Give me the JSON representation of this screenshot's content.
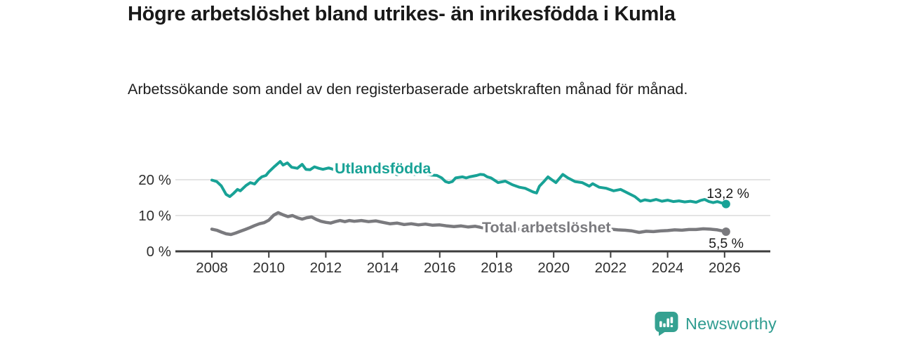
{
  "header": {
    "title": "Högre arbetslöshet bland utrikes- än inrikesfödda i Kumla",
    "subtitle": "Arbetssökande som andel av den registerbaserade arbetskraften månad för månad."
  },
  "footer": {
    "brand": "Newsworthy",
    "brand_color": "#2f9c90",
    "logo_icon": "newsworthy-bubble-chart-icon"
  },
  "chart_data": {
    "type": "line",
    "title": "Högre arbetslöshet bland utrikes- än inrikesfödda i Kumla",
    "subtitle": "Arbetssökande som andel av den registerbaserade arbetskraften månad för månad.",
    "xlabel": "",
    "ylabel": "",
    "unit": "%",
    "grid": "horizontal",
    "legend_position": "inline-labels",
    "xlim": [
      2006.7,
      2027.6
    ],
    "ylim": [
      0,
      27
    ],
    "x_ticks": [
      2008,
      2010,
      2012,
      2014,
      2016,
      2018,
      2020,
      2022,
      2024,
      2026
    ],
    "x_tick_labels": [
      "2008",
      "2010",
      "2012",
      "2014",
      "2016",
      "2018",
      "2020",
      "2022",
      "2024",
      "2026"
    ],
    "y_ticks": [
      0,
      10,
      20
    ],
    "y_tick_labels": [
      "0 %",
      "10 %",
      "20 %"
    ],
    "colors": {
      "utlandsfodda": "#18A296",
      "total": "#7A7A7E",
      "gridline": "#DCDCDC",
      "axis": "#3D3D3D",
      "annotation_text": "#191919"
    },
    "series": [
      {
        "name": "Utlandsfödda",
        "color": "#18A296",
        "end_value": 13.2,
        "end_label": "13,2 %",
        "points": [
          [
            2008.0,
            19.9
          ],
          [
            2008.17,
            19.5
          ],
          [
            2008.33,
            18.3
          ],
          [
            2008.5,
            15.9
          ],
          [
            2008.63,
            15.3
          ],
          [
            2008.75,
            16.1
          ],
          [
            2008.9,
            17.3
          ],
          [
            2009.0,
            16.9
          ],
          [
            2009.2,
            18.4
          ],
          [
            2009.35,
            19.2
          ],
          [
            2009.5,
            18.8
          ],
          [
            2009.63,
            20.0
          ],
          [
            2009.75,
            20.8
          ],
          [
            2009.9,
            21.2
          ],
          [
            2010.0,
            22.2
          ],
          [
            2010.2,
            23.7
          ],
          [
            2010.4,
            25.1
          ],
          [
            2010.5,
            24.1
          ],
          [
            2010.65,
            24.7
          ],
          [
            2010.8,
            23.5
          ],
          [
            2011.0,
            23.2
          ],
          [
            2011.17,
            24.3
          ],
          [
            2011.3,
            22.9
          ],
          [
            2011.45,
            22.8
          ],
          [
            2011.6,
            23.6
          ],
          [
            2011.75,
            23.2
          ],
          [
            2011.9,
            22.9
          ],
          [
            2012.1,
            23.3
          ],
          [
            2012.3,
            22.8
          ],
          [
            2012.5,
            22.6
          ],
          [
            2012.7,
            22.9
          ],
          [
            2012.9,
            22.4
          ],
          [
            2013.1,
            22.7
          ],
          [
            2013.3,
            22.3
          ],
          [
            2013.5,
            22.5
          ],
          [
            2013.7,
            22.1
          ],
          [
            2013.9,
            22.3
          ],
          [
            2014.1,
            21.7
          ],
          [
            2014.3,
            22.2
          ],
          [
            2014.5,
            21.4
          ],
          [
            2014.7,
            21.9
          ],
          [
            2014.9,
            22.1
          ],
          [
            2015.1,
            21.5
          ],
          [
            2015.3,
            21.6
          ],
          [
            2015.5,
            21.7
          ],
          [
            2015.7,
            21.3
          ],
          [
            2015.9,
            21.2
          ],
          [
            2016.07,
            20.5
          ],
          [
            2016.2,
            19.5
          ],
          [
            2016.32,
            19.2
          ],
          [
            2016.44,
            19.5
          ],
          [
            2016.56,
            20.5
          ],
          [
            2016.8,
            20.8
          ],
          [
            2016.93,
            20.5
          ],
          [
            2017.05,
            20.8
          ],
          [
            2017.3,
            21.2
          ],
          [
            2017.42,
            21.5
          ],
          [
            2017.55,
            21.4
          ],
          [
            2017.67,
            20.8
          ],
          [
            2017.8,
            20.5
          ],
          [
            2018.05,
            19.2
          ],
          [
            2018.3,
            19.6
          ],
          [
            2018.55,
            18.6
          ],
          [
            2018.8,
            17.9
          ],
          [
            2019.0,
            17.6
          ],
          [
            2019.27,
            16.6
          ],
          [
            2019.4,
            16.3
          ],
          [
            2019.5,
            18.2
          ],
          [
            2019.67,
            19.6
          ],
          [
            2019.8,
            20.8
          ],
          [
            2019.9,
            20.2
          ],
          [
            2020.08,
            19.2
          ],
          [
            2020.32,
            21.5
          ],
          [
            2020.5,
            20.5
          ],
          [
            2020.75,
            19.5
          ],
          [
            2021.0,
            19.2
          ],
          [
            2021.25,
            18.2
          ],
          [
            2021.37,
            18.9
          ],
          [
            2021.6,
            17.9
          ],
          [
            2021.85,
            17.6
          ],
          [
            2022.1,
            16.9
          ],
          [
            2022.35,
            17.3
          ],
          [
            2022.6,
            16.3
          ],
          [
            2022.85,
            15.3
          ],
          [
            2023.05,
            14.0
          ],
          [
            2023.2,
            14.4
          ],
          [
            2023.4,
            14.1
          ],
          [
            2023.6,
            14.5
          ],
          [
            2023.8,
            14.0
          ],
          [
            2024.0,
            14.3
          ],
          [
            2024.2,
            13.9
          ],
          [
            2024.4,
            14.1
          ],
          [
            2024.6,
            13.8
          ],
          [
            2024.8,
            14.0
          ],
          [
            2025.0,
            13.7
          ],
          [
            2025.15,
            14.2
          ],
          [
            2025.3,
            14.5
          ],
          [
            2025.45,
            13.9
          ],
          [
            2025.6,
            13.6
          ],
          [
            2025.75,
            13.9
          ],
          [
            2025.9,
            13.5
          ],
          [
            2026.05,
            13.2
          ]
        ]
      },
      {
        "name": "Total arbetslöshet",
        "color": "#7A7A7E",
        "end_value": 5.5,
        "end_label": "5,5 %",
        "points": [
          [
            2008.0,
            6.2
          ],
          [
            2008.17,
            5.9
          ],
          [
            2008.33,
            5.4
          ],
          [
            2008.5,
            4.9
          ],
          [
            2008.67,
            4.7
          ],
          [
            2008.83,
            5.1
          ],
          [
            2009.0,
            5.6
          ],
          [
            2009.17,
            6.1
          ],
          [
            2009.33,
            6.6
          ],
          [
            2009.5,
            7.2
          ],
          [
            2009.67,
            7.7
          ],
          [
            2009.83,
            8.0
          ],
          [
            2010.0,
            8.7
          ],
          [
            2010.17,
            10.1
          ],
          [
            2010.33,
            10.8
          ],
          [
            2010.5,
            10.2
          ],
          [
            2010.67,
            9.7
          ],
          [
            2010.83,
            10.0
          ],
          [
            2011.0,
            9.4
          ],
          [
            2011.17,
            9.0
          ],
          [
            2011.33,
            9.4
          ],
          [
            2011.5,
            9.6
          ],
          [
            2011.67,
            8.9
          ],
          [
            2011.83,
            8.4
          ],
          [
            2012.0,
            8.1
          ],
          [
            2012.17,
            7.9
          ],
          [
            2012.33,
            8.3
          ],
          [
            2012.5,
            8.6
          ],
          [
            2012.67,
            8.3
          ],
          [
            2012.83,
            8.6
          ],
          [
            2013.0,
            8.4
          ],
          [
            2013.25,
            8.6
          ],
          [
            2013.5,
            8.3
          ],
          [
            2013.75,
            8.5
          ],
          [
            2014.0,
            8.1
          ],
          [
            2014.25,
            7.7
          ],
          [
            2014.5,
            7.9
          ],
          [
            2014.75,
            7.5
          ],
          [
            2015.0,
            7.7
          ],
          [
            2015.25,
            7.4
          ],
          [
            2015.5,
            7.6
          ],
          [
            2015.75,
            7.3
          ],
          [
            2016.0,
            7.4
          ],
          [
            2016.25,
            7.1
          ],
          [
            2016.5,
            6.9
          ],
          [
            2016.75,
            7.1
          ],
          [
            2017.0,
            6.8
          ],
          [
            2017.25,
            7.0
          ],
          [
            2017.5,
            6.6
          ],
          [
            2017.75,
            6.4
          ],
          [
            2018.0,
            6.5
          ],
          [
            2018.25,
            6.3
          ],
          [
            2018.5,
            6.4
          ],
          [
            2018.75,
            6.2
          ],
          [
            2019.0,
            6.1
          ],
          [
            2019.25,
            6.3
          ],
          [
            2019.5,
            6.2
          ],
          [
            2019.75,
            6.4
          ],
          [
            2020.0,
            6.6
          ],
          [
            2020.25,
            7.0
          ],
          [
            2020.5,
            6.8
          ],
          [
            2020.75,
            6.6
          ],
          [
            2021.0,
            6.5
          ],
          [
            2021.25,
            6.6
          ],
          [
            2021.5,
            6.4
          ],
          [
            2021.75,
            6.3
          ],
          [
            2022.0,
            6.2
          ],
          [
            2022.25,
            6.0
          ],
          [
            2022.5,
            5.9
          ],
          [
            2022.75,
            5.7
          ],
          [
            2023.0,
            5.3
          ],
          [
            2023.25,
            5.6
          ],
          [
            2023.5,
            5.5
          ],
          [
            2023.75,
            5.7
          ],
          [
            2024.0,
            5.8
          ],
          [
            2024.25,
            6.0
          ],
          [
            2024.5,
            5.9
          ],
          [
            2024.75,
            6.1
          ],
          [
            2025.0,
            6.1
          ],
          [
            2025.25,
            6.3
          ],
          [
            2025.5,
            6.2
          ],
          [
            2025.75,
            6.0
          ],
          [
            2026.05,
            5.5
          ]
        ]
      }
    ]
  }
}
